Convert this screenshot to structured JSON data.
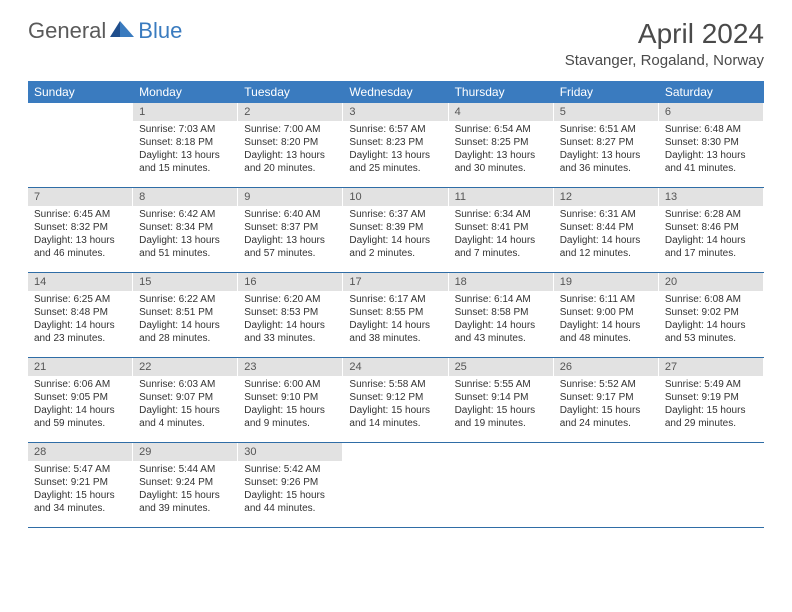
{
  "logo": {
    "general": "General",
    "blue": "Blue"
  },
  "title": "April 2024",
  "location": "Stavanger, Rogaland, Norway",
  "colors": {
    "header_bg": "#3a7bbf",
    "daynum_bg": "#e2e2e2",
    "row_border": "#2f6da6",
    "text": "#333333"
  },
  "weekdays": [
    "Sunday",
    "Monday",
    "Tuesday",
    "Wednesday",
    "Thursday",
    "Friday",
    "Saturday"
  ],
  "weeks": [
    [
      {
        "n": "",
        "sr": "",
        "ss": "",
        "dl": ""
      },
      {
        "n": "1",
        "sr": "Sunrise: 7:03 AM",
        "ss": "Sunset: 8:18 PM",
        "dl": "Daylight: 13 hours and 15 minutes."
      },
      {
        "n": "2",
        "sr": "Sunrise: 7:00 AM",
        "ss": "Sunset: 8:20 PM",
        "dl": "Daylight: 13 hours and 20 minutes."
      },
      {
        "n": "3",
        "sr": "Sunrise: 6:57 AM",
        "ss": "Sunset: 8:23 PM",
        "dl": "Daylight: 13 hours and 25 minutes."
      },
      {
        "n": "4",
        "sr": "Sunrise: 6:54 AM",
        "ss": "Sunset: 8:25 PM",
        "dl": "Daylight: 13 hours and 30 minutes."
      },
      {
        "n": "5",
        "sr": "Sunrise: 6:51 AM",
        "ss": "Sunset: 8:27 PM",
        "dl": "Daylight: 13 hours and 36 minutes."
      },
      {
        "n": "6",
        "sr": "Sunrise: 6:48 AM",
        "ss": "Sunset: 8:30 PM",
        "dl": "Daylight: 13 hours and 41 minutes."
      }
    ],
    [
      {
        "n": "7",
        "sr": "Sunrise: 6:45 AM",
        "ss": "Sunset: 8:32 PM",
        "dl": "Daylight: 13 hours and 46 minutes."
      },
      {
        "n": "8",
        "sr": "Sunrise: 6:42 AM",
        "ss": "Sunset: 8:34 PM",
        "dl": "Daylight: 13 hours and 51 minutes."
      },
      {
        "n": "9",
        "sr": "Sunrise: 6:40 AM",
        "ss": "Sunset: 8:37 PM",
        "dl": "Daylight: 13 hours and 57 minutes."
      },
      {
        "n": "10",
        "sr": "Sunrise: 6:37 AM",
        "ss": "Sunset: 8:39 PM",
        "dl": "Daylight: 14 hours and 2 minutes."
      },
      {
        "n": "11",
        "sr": "Sunrise: 6:34 AM",
        "ss": "Sunset: 8:41 PM",
        "dl": "Daylight: 14 hours and 7 minutes."
      },
      {
        "n": "12",
        "sr": "Sunrise: 6:31 AM",
        "ss": "Sunset: 8:44 PM",
        "dl": "Daylight: 14 hours and 12 minutes."
      },
      {
        "n": "13",
        "sr": "Sunrise: 6:28 AM",
        "ss": "Sunset: 8:46 PM",
        "dl": "Daylight: 14 hours and 17 minutes."
      }
    ],
    [
      {
        "n": "14",
        "sr": "Sunrise: 6:25 AM",
        "ss": "Sunset: 8:48 PM",
        "dl": "Daylight: 14 hours and 23 minutes."
      },
      {
        "n": "15",
        "sr": "Sunrise: 6:22 AM",
        "ss": "Sunset: 8:51 PM",
        "dl": "Daylight: 14 hours and 28 minutes."
      },
      {
        "n": "16",
        "sr": "Sunrise: 6:20 AM",
        "ss": "Sunset: 8:53 PM",
        "dl": "Daylight: 14 hours and 33 minutes."
      },
      {
        "n": "17",
        "sr": "Sunrise: 6:17 AM",
        "ss": "Sunset: 8:55 PM",
        "dl": "Daylight: 14 hours and 38 minutes."
      },
      {
        "n": "18",
        "sr": "Sunrise: 6:14 AM",
        "ss": "Sunset: 8:58 PM",
        "dl": "Daylight: 14 hours and 43 minutes."
      },
      {
        "n": "19",
        "sr": "Sunrise: 6:11 AM",
        "ss": "Sunset: 9:00 PM",
        "dl": "Daylight: 14 hours and 48 minutes."
      },
      {
        "n": "20",
        "sr": "Sunrise: 6:08 AM",
        "ss": "Sunset: 9:02 PM",
        "dl": "Daylight: 14 hours and 53 minutes."
      }
    ],
    [
      {
        "n": "21",
        "sr": "Sunrise: 6:06 AM",
        "ss": "Sunset: 9:05 PM",
        "dl": "Daylight: 14 hours and 59 minutes."
      },
      {
        "n": "22",
        "sr": "Sunrise: 6:03 AM",
        "ss": "Sunset: 9:07 PM",
        "dl": "Daylight: 15 hours and 4 minutes."
      },
      {
        "n": "23",
        "sr": "Sunrise: 6:00 AM",
        "ss": "Sunset: 9:10 PM",
        "dl": "Daylight: 15 hours and 9 minutes."
      },
      {
        "n": "24",
        "sr": "Sunrise: 5:58 AM",
        "ss": "Sunset: 9:12 PM",
        "dl": "Daylight: 15 hours and 14 minutes."
      },
      {
        "n": "25",
        "sr": "Sunrise: 5:55 AM",
        "ss": "Sunset: 9:14 PM",
        "dl": "Daylight: 15 hours and 19 minutes."
      },
      {
        "n": "26",
        "sr": "Sunrise: 5:52 AM",
        "ss": "Sunset: 9:17 PM",
        "dl": "Daylight: 15 hours and 24 minutes."
      },
      {
        "n": "27",
        "sr": "Sunrise: 5:49 AM",
        "ss": "Sunset: 9:19 PM",
        "dl": "Daylight: 15 hours and 29 minutes."
      }
    ],
    [
      {
        "n": "28",
        "sr": "Sunrise: 5:47 AM",
        "ss": "Sunset: 9:21 PM",
        "dl": "Daylight: 15 hours and 34 minutes."
      },
      {
        "n": "29",
        "sr": "Sunrise: 5:44 AM",
        "ss": "Sunset: 9:24 PM",
        "dl": "Daylight: 15 hours and 39 minutes."
      },
      {
        "n": "30",
        "sr": "Sunrise: 5:42 AM",
        "ss": "Sunset: 9:26 PM",
        "dl": "Daylight: 15 hours and 44 minutes."
      },
      {
        "n": "",
        "sr": "",
        "ss": "",
        "dl": ""
      },
      {
        "n": "",
        "sr": "",
        "ss": "",
        "dl": ""
      },
      {
        "n": "",
        "sr": "",
        "ss": "",
        "dl": ""
      },
      {
        "n": "",
        "sr": "",
        "ss": "",
        "dl": ""
      }
    ]
  ]
}
